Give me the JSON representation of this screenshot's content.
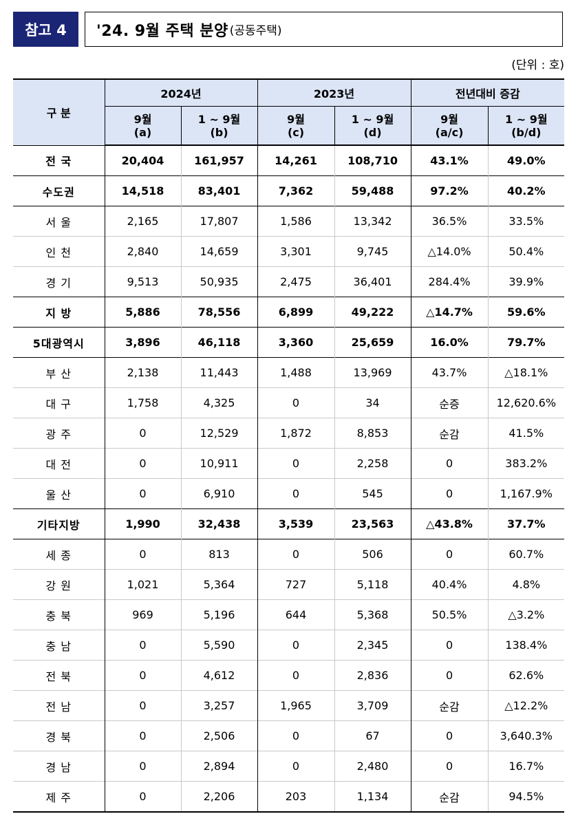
{
  "header": {
    "badge": "참고 4",
    "title_main": "'24. 9월 주택 분양",
    "title_sub": "(공동주택)",
    "unit": "(단위 : 호)"
  },
  "table": {
    "col_region": "구  분",
    "groups": [
      "2024년",
      "2023년",
      "전년대비 증감"
    ],
    "sub_cols": [
      {
        "line1": "9월",
        "line2": "(a)"
      },
      {
        "line1": "1 ~ 9월",
        "line2": "(b)"
      },
      {
        "line1": "9월",
        "line2": "(c)"
      },
      {
        "line1": "1 ~ 9월",
        "line2": "(d)"
      },
      {
        "line1": "9월",
        "line2": "(a/c)"
      },
      {
        "line1": "1 ~ 9월",
        "line2": "(b/d)"
      }
    ],
    "rows": [
      {
        "name": "전 국",
        "bold": true,
        "cells": [
          "20,404",
          "161,957",
          "14,261",
          "108,710",
          "43.1%",
          "49.0%"
        ]
      },
      {
        "name": "수도권",
        "bold": true,
        "cells": [
          "14,518",
          "83,401",
          "7,362",
          "59,488",
          "97.2%",
          "40.2%"
        ]
      },
      {
        "name": "서 울",
        "bold": false,
        "cells": [
          "2,165",
          "17,807",
          "1,586",
          "13,342",
          "36.5%",
          "33.5%"
        ]
      },
      {
        "name": "인 천",
        "bold": false,
        "cells": [
          "2,840",
          "14,659",
          "3,301",
          "9,745",
          "△14.0%",
          "50.4%"
        ]
      },
      {
        "name": "경 기",
        "bold": false,
        "cells": [
          "9,513",
          "50,935",
          "2,475",
          "36,401",
          "284.4%",
          "39.9%"
        ]
      },
      {
        "name": "지  방",
        "bold": true,
        "cells": [
          "5,886",
          "78,556",
          "6,899",
          "49,222",
          "△14.7%",
          "59.6%"
        ]
      },
      {
        "name": "5대광역시",
        "bold": true,
        "cells": [
          "3,896",
          "46,118",
          "3,360",
          "25,659",
          "16.0%",
          "79.7%"
        ]
      },
      {
        "name": "부 산",
        "bold": false,
        "cells": [
          "2,138",
          "11,443",
          "1,488",
          "13,969",
          "43.7%",
          "△18.1%"
        ]
      },
      {
        "name": "대 구",
        "bold": false,
        "cells": [
          "1,758",
          "4,325",
          "0",
          "34",
          "순증",
          "12,620.6%"
        ]
      },
      {
        "name": "광 주",
        "bold": false,
        "cells": [
          "0",
          "12,529",
          "1,872",
          "8,853",
          "순감",
          "41.5%"
        ]
      },
      {
        "name": "대 전",
        "bold": false,
        "cells": [
          "0",
          "10,911",
          "0",
          "2,258",
          "0",
          "383.2%"
        ]
      },
      {
        "name": "울 산",
        "bold": false,
        "cells": [
          "0",
          "6,910",
          "0",
          "545",
          "0",
          "1,167.9%"
        ]
      },
      {
        "name": "기타지방",
        "bold": true,
        "cells": [
          "1,990",
          "32,438",
          "3,539",
          "23,563",
          "△43.8%",
          "37.7%"
        ]
      },
      {
        "name": "세 종",
        "bold": false,
        "cells": [
          "0",
          "813",
          "0",
          "506",
          "0",
          "60.7%"
        ]
      },
      {
        "name": "강 원",
        "bold": false,
        "cells": [
          "1,021",
          "5,364",
          "727",
          "5,118",
          "40.4%",
          "4.8%"
        ]
      },
      {
        "name": "충 북",
        "bold": false,
        "cells": [
          "969",
          "5,196",
          "644",
          "5,368",
          "50.5%",
          "△3.2%"
        ]
      },
      {
        "name": "충 남",
        "bold": false,
        "cells": [
          "0",
          "5,590",
          "0",
          "2,345",
          "0",
          "138.4%"
        ]
      },
      {
        "name": "전 북",
        "bold": false,
        "cells": [
          "0",
          "4,612",
          "0",
          "2,836",
          "0",
          "62.6%"
        ]
      },
      {
        "name": "전 남",
        "bold": false,
        "cells": [
          "0",
          "3,257",
          "1,965",
          "3,709",
          "순감",
          "△12.2%"
        ]
      },
      {
        "name": "경 북",
        "bold": false,
        "cells": [
          "0",
          "2,506",
          "0",
          "67",
          "0",
          "3,640.3%"
        ]
      },
      {
        "name": "경 남",
        "bold": false,
        "cells": [
          "0",
          "2,894",
          "0",
          "2,480",
          "0",
          "16.7%"
        ]
      },
      {
        "name": "제 주",
        "bold": false,
        "cells": [
          "0",
          "2,206",
          "203",
          "1,134",
          "순감",
          "94.5%"
        ]
      }
    ]
  }
}
